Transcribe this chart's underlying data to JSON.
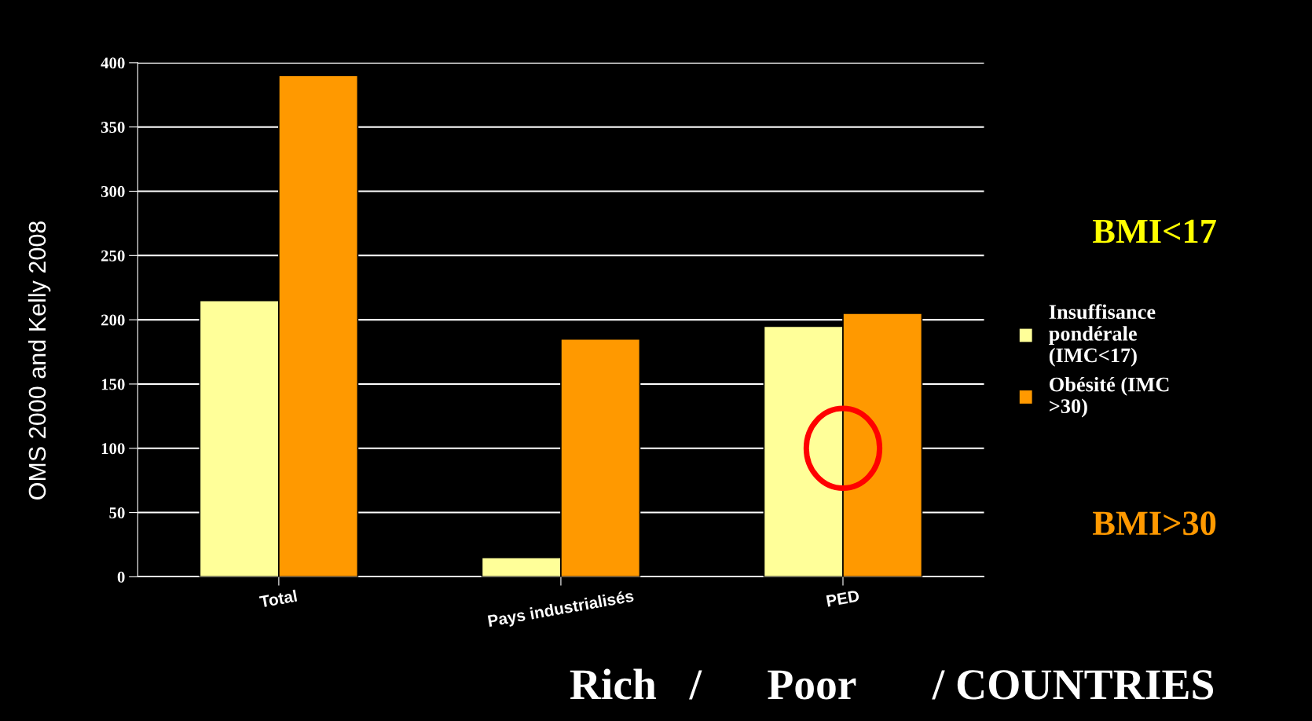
{
  "chart_data": {
    "type": "bar",
    "categories": [
      "Total",
      "Pays industrialisés",
      "PED"
    ],
    "series": [
      {
        "name": "Insuffisance pondérale (IMC<17)",
        "color": "#ffff99",
        "values": [
          215,
          15,
          195
        ]
      },
      {
        "name": "Obésité (IMC >30)",
        "color": "#ff9900",
        "values": [
          390,
          185,
          205
        ]
      }
    ],
    "ylabel": "OMS 2000 and Kelly 2008",
    "ylim": [
      0,
      400
    ],
    "yticks": [
      0,
      50,
      100,
      150,
      200,
      250,
      300,
      350,
      400
    ],
    "grid": "y",
    "legend": "right",
    "annotations": [
      "BMI<17",
      "BMI>30",
      "Rich   /      Poor       / COUNTRIES"
    ]
  }
}
